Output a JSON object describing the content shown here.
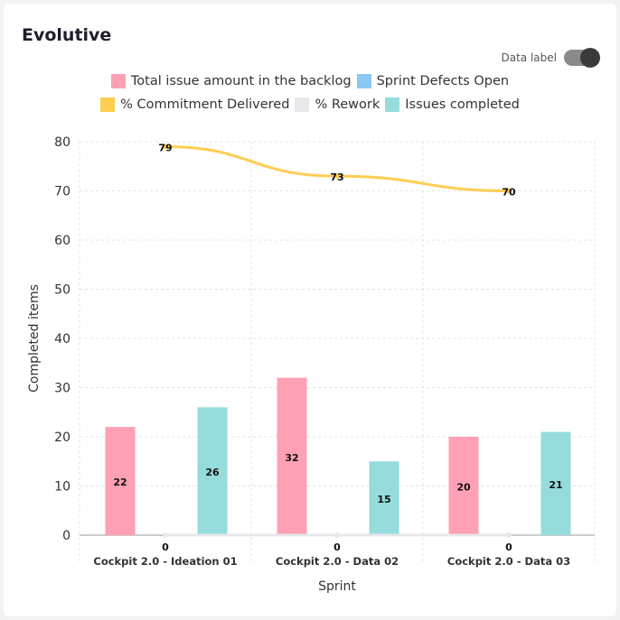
{
  "title": "Evolutive",
  "toggle": {
    "label": "Data label",
    "on": true
  },
  "chart_data": {
    "type": "bar",
    "categories": [
      "Cockpit 2.0 - Ideation 01",
      "Cockpit 2.0 - Data 02",
      "Cockpit 2.0 - Data 03"
    ],
    "xlabel": "Sprint",
    "ylabel": "Completed items",
    "ylim": [
      0,
      80
    ],
    "yticks": [
      0,
      10,
      20,
      30,
      40,
      50,
      60,
      70,
      80
    ],
    "grid": true,
    "legend_position": "top",
    "series": [
      {
        "name": "Total issue amount in the backlog",
        "kind": "bar",
        "color": "#ffa0b4",
        "values": [
          22,
          32,
          20
        ]
      },
      {
        "name": "Sprint Defects Open",
        "kind": "bar",
        "color": "#8cc8f5",
        "values": [
          0,
          0,
          0
        ]
      },
      {
        "name": "% Commitment Delivered",
        "kind": "line",
        "color": "#ffcd50",
        "values": [
          79,
          73,
          70
        ]
      },
      {
        "name": "% Rework",
        "kind": "line",
        "color": "#e6e8ec",
        "values": [
          0,
          0,
          0
        ]
      },
      {
        "name": "Issues completed",
        "kind": "bar",
        "color": "#96dcdc",
        "values": [
          26,
          15,
          21
        ]
      }
    ]
  }
}
